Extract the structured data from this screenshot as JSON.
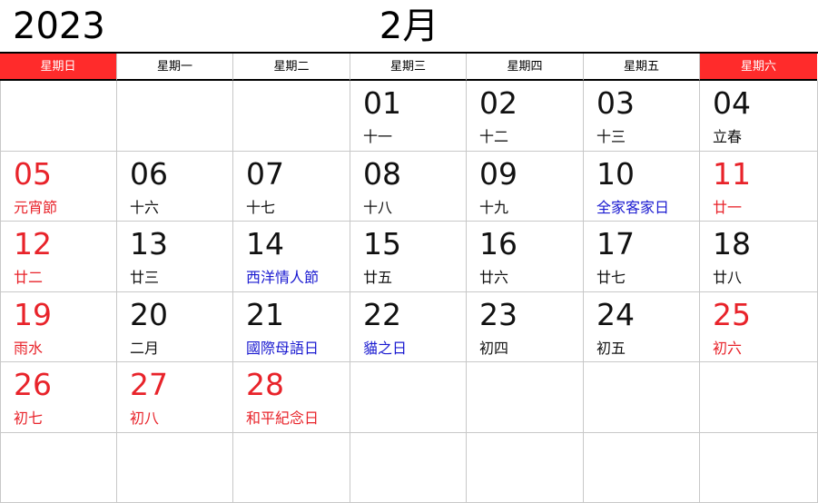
{
  "header": {
    "year": "2023",
    "month": "2月"
  },
  "weekdays": [
    {
      "label": "星期日",
      "color": "#ff2b2b"
    },
    {
      "label": "星期一",
      "color": "#ffffff"
    },
    {
      "label": "星期二",
      "color": "#ffffff"
    },
    {
      "label": "星期三",
      "color": "#ffffff"
    },
    {
      "label": "星期四",
      "color": "#ffffff"
    },
    {
      "label": "星期五",
      "color": "#ffffff"
    },
    {
      "label": "星期六",
      "color": "#ff2b2b"
    }
  ],
  "weeks": [
    [
      null,
      null,
      null,
      {
        "day": "01",
        "note": "十一",
        "color": "#111111"
      },
      {
        "day": "02",
        "note": "十二",
        "color": "#111111"
      },
      {
        "day": "03",
        "note": "十三",
        "color": "#111111"
      },
      {
        "day": "04",
        "note": "立春",
        "color": "#111111"
      }
    ],
    [
      {
        "day": "05",
        "note": "元宵節",
        "color": "#e8232a"
      },
      {
        "day": "06",
        "note": "十六",
        "color": "#111111"
      },
      {
        "day": "07",
        "note": "十七",
        "color": "#111111"
      },
      {
        "day": "08",
        "note": "十八",
        "color": "#111111"
      },
      {
        "day": "09",
        "note": "十九",
        "color": "#111111"
      },
      {
        "day": "10",
        "note": "全家客家日",
        "color": "#111111",
        "note_color": "#1a1ad0"
      },
      {
        "day": "11",
        "note": "廿一",
        "color": "#e8232a"
      }
    ],
    [
      {
        "day": "12",
        "note": "廿二",
        "color": "#e8232a"
      },
      {
        "day": "13",
        "note": "廿三",
        "color": "#111111"
      },
      {
        "day": "14",
        "note": "西洋情人節",
        "color": "#111111",
        "note_color": "#1a1ad0"
      },
      {
        "day": "15",
        "note": "廿五",
        "color": "#111111"
      },
      {
        "day": "16",
        "note": "廿六",
        "color": "#111111"
      },
      {
        "day": "17",
        "note": "廿七",
        "color": "#111111"
      },
      {
        "day": "18",
        "note": "廿八",
        "color": "#111111"
      }
    ],
    [
      {
        "day": "19",
        "note": "雨水",
        "color": "#e8232a"
      },
      {
        "day": "20",
        "note": "二月",
        "color": "#111111"
      },
      {
        "day": "21",
        "note": "國際母語日",
        "color": "#111111",
        "note_color": "#1a1ad0"
      },
      {
        "day": "22",
        "note": "貓之日",
        "color": "#111111",
        "note_color": "#1a1ad0"
      },
      {
        "day": "23",
        "note": "初四",
        "color": "#111111"
      },
      {
        "day": "24",
        "note": "初五",
        "color": "#111111"
      },
      {
        "day": "25",
        "note": "初六",
        "color": "#e8232a"
      }
    ],
    [
      {
        "day": "26",
        "note": "初七",
        "color": "#e8232a"
      },
      {
        "day": "27",
        "note": "初八",
        "color": "#e8232a"
      },
      {
        "day": "28",
        "note": "和平紀念日",
        "color": "#e8232a"
      },
      null,
      null,
      null,
      null
    ],
    [
      null,
      null,
      null,
      null,
      null,
      null,
      null
    ]
  ]
}
